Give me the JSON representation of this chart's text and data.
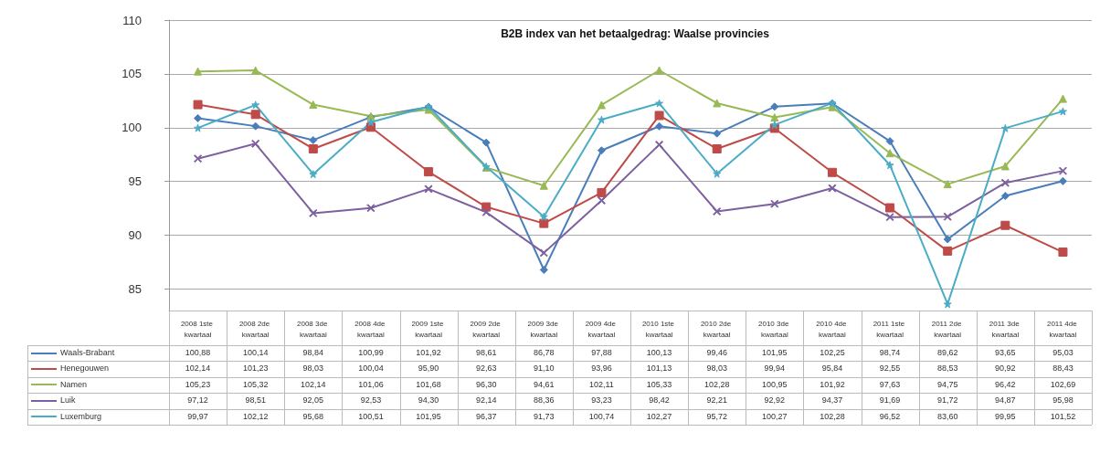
{
  "chart_data": {
    "type": "line",
    "title": "B2B index van het betaalgedrag: Waalse provincies",
    "categories": [
      "2008 1ste kwartaal",
      "2008 2de kwartaal",
      "2008 3de kwartaal",
      "2008 4de kwartaal",
      "2009 1ste kwartaal",
      "2009 2de kwartaal",
      "2009 3de kwartaal",
      "2009 4de kwartaal",
      "2010 1ste kwartaal",
      "2010 2de kwartaal",
      "2010 3de kwartaal",
      "2010 4de kwartaal",
      "2011 1ste kwartaal",
      "2011 2de kwartaal",
      "2011 3de kwartaal",
      "2011 4de kwartaal"
    ],
    "series": [
      {
        "name": "Waals-Brabant",
        "color": "#4a7ebb",
        "marker": "diamond",
        "values": [
          100.88,
          100.14,
          98.84,
          100.99,
          101.92,
          98.61,
          86.78,
          97.88,
          100.13,
          99.46,
          101.95,
          102.25,
          98.74,
          89.62,
          93.65,
          95.03
        ],
        "value_labels": [
          "100,88",
          "100,14",
          "98,84",
          "100,99",
          "101,92",
          "98,61",
          "86,78",
          "97,88",
          "100,13",
          "99,46",
          "101,95",
          "102,25",
          "98,74",
          "89,62",
          "93,65",
          "95,03"
        ]
      },
      {
        "name": "Henegouwen",
        "color": "#be4b48",
        "marker": "square",
        "values": [
          102.14,
          101.23,
          98.03,
          100.04,
          95.9,
          92.63,
          91.1,
          93.96,
          101.13,
          98.03,
          99.94,
          95.84,
          92.55,
          88.53,
          90.92,
          88.43
        ],
        "value_labels": [
          "102,14",
          "101,23",
          "98,03",
          "100,04",
          "95,90",
          "92,63",
          "91,10",
          "93,96",
          "101,13",
          "98,03",
          "99,94",
          "95,84",
          "92,55",
          "88,53",
          "90,92",
          "88,43"
        ]
      },
      {
        "name": "Namen",
        "color": "#98b954",
        "marker": "triangle",
        "values": [
          105.23,
          105.32,
          102.14,
          101.06,
          101.68,
          96.3,
          94.61,
          102.11,
          105.33,
          102.28,
          100.95,
          101.92,
          97.63,
          94.75,
          96.42,
          102.69
        ],
        "value_labels": [
          "105,23",
          "105,32",
          "102,14",
          "101,06",
          "101,68",
          "96,30",
          "94,61",
          "102,11",
          "105,33",
          "102,28",
          "100,95",
          "101,92",
          "97,63",
          "94,75",
          "96,42",
          "102,69"
        ]
      },
      {
        "name": "Luik",
        "color": "#7d60a0",
        "marker": "cross",
        "values": [
          97.12,
          98.51,
          92.05,
          92.53,
          94.3,
          92.14,
          88.36,
          93.23,
          98.42,
          92.21,
          92.92,
          94.37,
          91.69,
          91.72,
          94.87,
          95.98
        ],
        "value_labels": [
          "97,12",
          "98,51",
          "92,05",
          "92,53",
          "94,30",
          "92,14",
          "88,36",
          "93,23",
          "98,42",
          "92,21",
          "92,92",
          "94,37",
          "91,69",
          "91,72",
          "94,87",
          "95,98"
        ]
      },
      {
        "name": "Luxemburg",
        "color": "#4bacc6",
        "marker": "star",
        "values": [
          99.97,
          102.12,
          95.68,
          100.51,
          101.95,
          96.37,
          91.73,
          100.74,
          102.27,
          95.72,
          100.27,
          102.28,
          96.52,
          83.6,
          99.95,
          101.52
        ],
        "value_labels": [
          "99,97",
          "102,12",
          "95,68",
          "100,51",
          "101,95",
          "96,37",
          "91,73",
          "100,74",
          "102,27",
          "95,72",
          "100,27",
          "102,28",
          "96,52",
          "83,60",
          "99,95",
          "101,52"
        ]
      }
    ],
    "ylim": [
      83,
      110
    ],
    "yticks": [
      85,
      90,
      95,
      100,
      105,
      110
    ],
    "grid": "y",
    "legend": "bottom left"
  }
}
